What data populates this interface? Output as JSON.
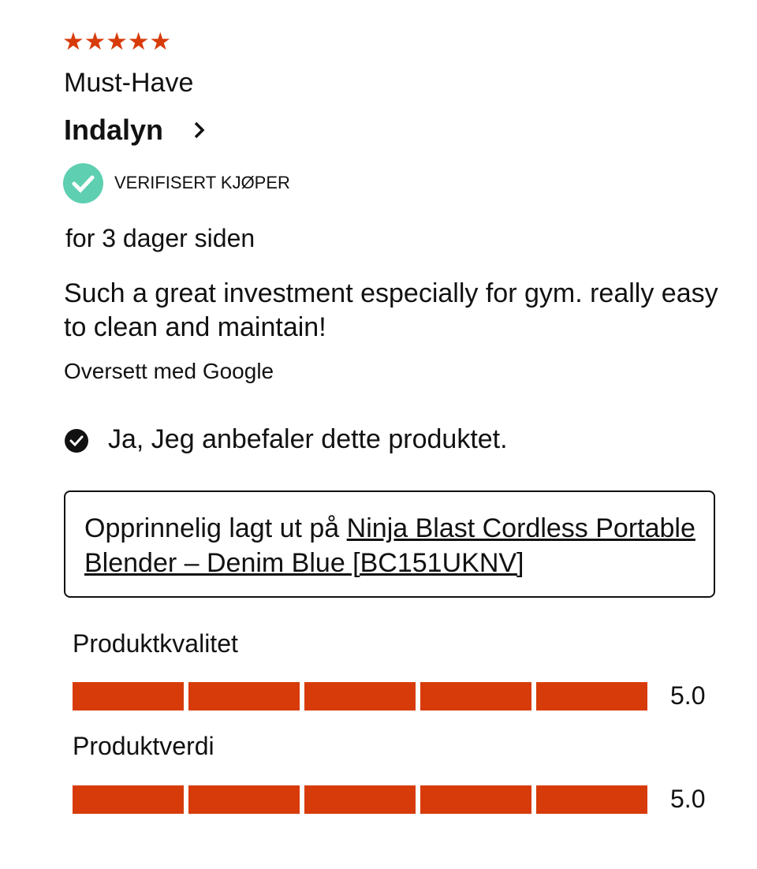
{
  "review": {
    "rating": 5,
    "max_rating": 5,
    "title": "Must-Have",
    "author": "Indalyn",
    "verified_label": "VERIFISERT KJØPER",
    "date": "for 3 dager siden",
    "body": "Such a great investment especially for gym. really easy to clean and maintain!",
    "translate_label": "Oversett med Google",
    "recommend_text": "Ja, Jeg anbefaler dette produktet.",
    "originally_posted_prefix": "Opprinnelig lagt ut på ",
    "product_link": "Ninja Blast Cordless Portable Blender – Denim Blue [BC151UKNV]"
  },
  "sub_ratings": [
    {
      "label": "Produktkvalitet",
      "value": "5.0",
      "score": 5,
      "max": 5
    },
    {
      "label": "Produktverdi",
      "value": "5.0",
      "score": 5,
      "max": 5
    }
  ],
  "colors": {
    "accent": "#d83b0a",
    "verified": "#5ecfb1"
  },
  "icons": {
    "star": "star-icon",
    "chevron": "chevron-right-icon",
    "verified": "check-circle-icon",
    "recommend": "check-circle-filled-icon"
  }
}
